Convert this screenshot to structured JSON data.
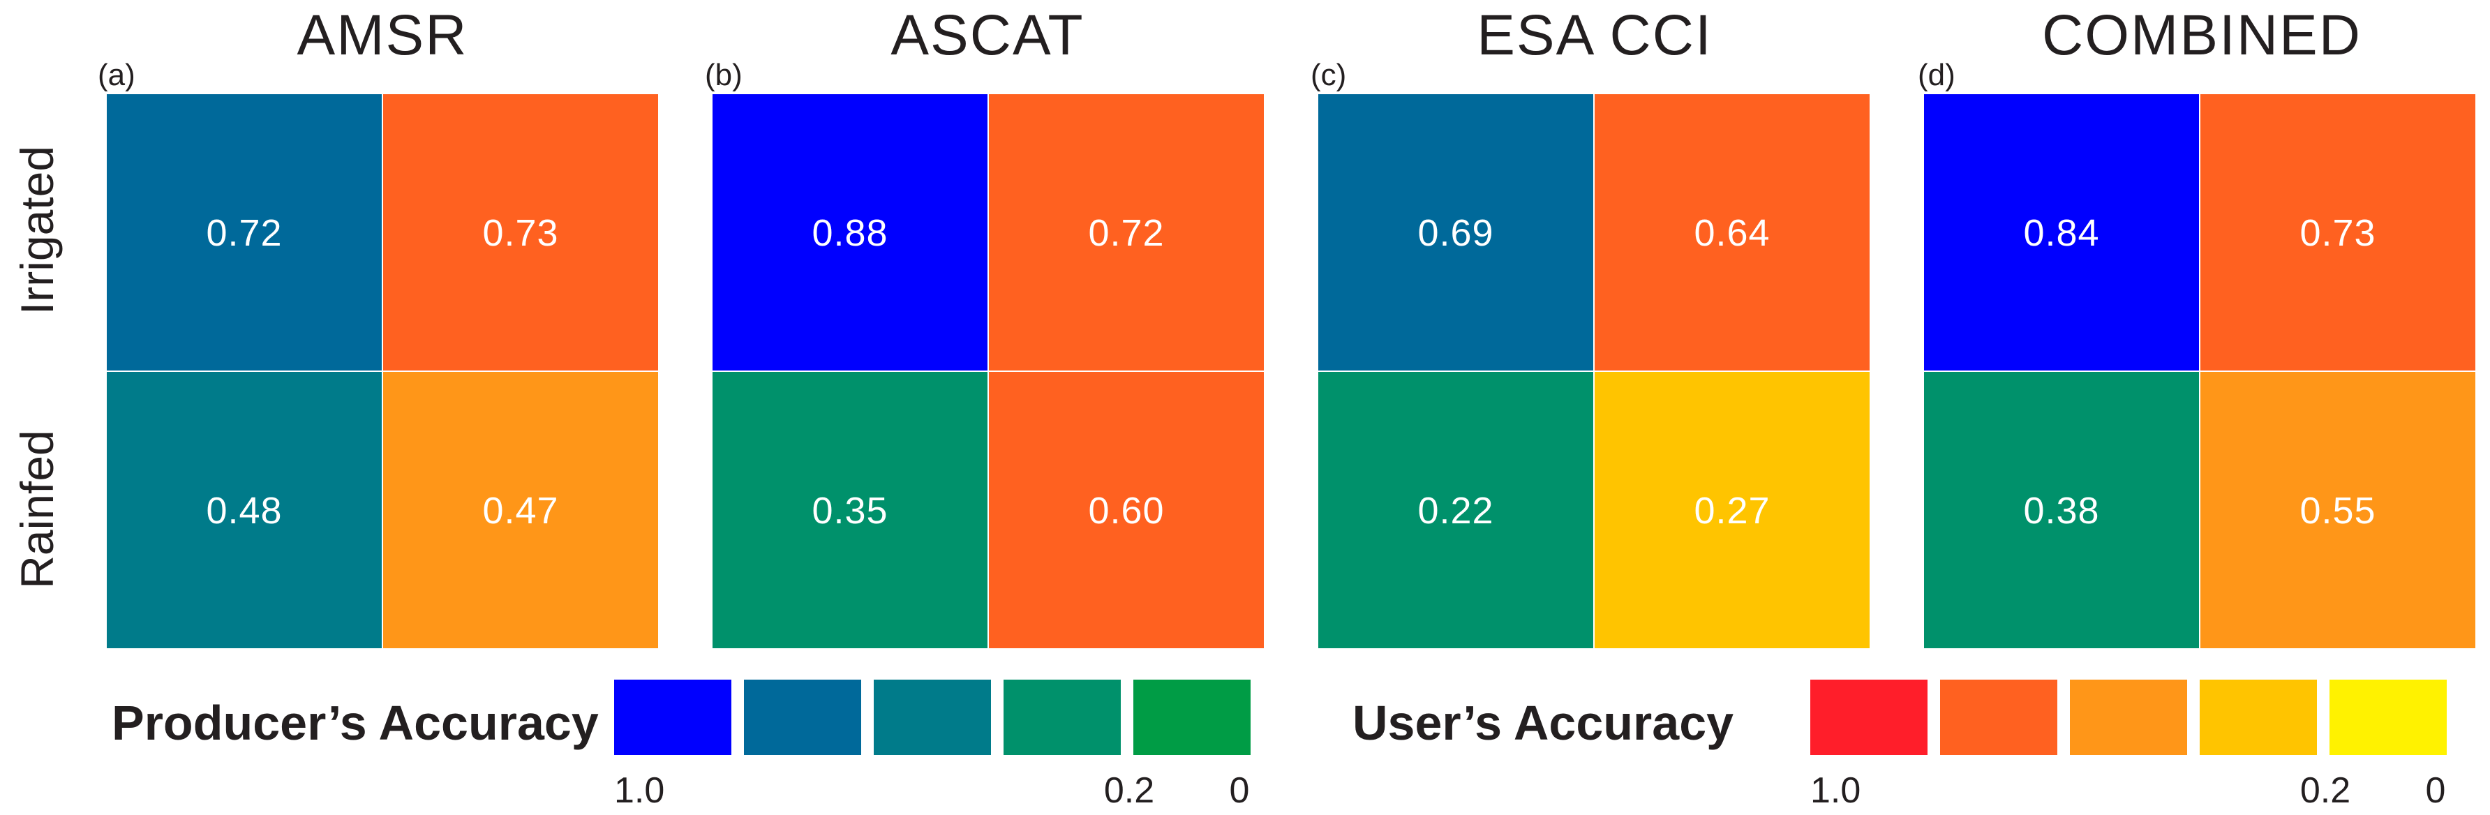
{
  "chart_data": {
    "type": "heatmap",
    "row_labels": [
      "Irrigated",
      "Rainfed"
    ],
    "panels": [
      {
        "label": "(a)",
        "title": "AMSR",
        "producers_accuracy": [
          0.72,
          0.48
        ],
        "users_accuracy": [
          0.73,
          0.47
        ],
        "pa_colors": [
          "#00699a",
          "#007b8a"
        ],
        "ua_colors": [
          "#ff6120",
          "#ff9618"
        ]
      },
      {
        "label": "(b)",
        "title": "ASCAT",
        "producers_accuracy": [
          0.88,
          0.35
        ],
        "users_accuracy": [
          0.72,
          0.6
        ],
        "pa_colors": [
          "#0000ff",
          "#00916b"
        ],
        "ua_colors": [
          "#ff6120",
          "#ff6120"
        ]
      },
      {
        "label": "(c)",
        "title": "ESA CCI",
        "producers_accuracy": [
          0.69,
          0.22
        ],
        "users_accuracy": [
          0.64,
          0.27
        ],
        "pa_colors": [
          "#00699a",
          "#00916b"
        ],
        "ua_colors": [
          "#ff6120",
          "#ffc400"
        ]
      },
      {
        "label": "(d)",
        "title": "COMBINED",
        "producers_accuracy": [
          0.84,
          0.38
        ],
        "users_accuracy": [
          0.73,
          0.55
        ],
        "pa_colors": [
          "#0000ff",
          "#00916b"
        ],
        "ua_colors": [
          "#ff6120",
          "#ff9618"
        ]
      }
    ],
    "legends": [
      {
        "title": "Producer’s  Accuracy",
        "colors": [
          "#0000ff",
          "#00699a",
          "#007b8a",
          "#00916b",
          "#009c45"
        ],
        "ticks": [
          "1.0",
          "0.2",
          "0"
        ]
      },
      {
        "title": "User’s  Accuracy",
        "colors": [
          "#ff1e2a",
          "#ff6120",
          "#ff9618",
          "#ffc400",
          "#fff200"
        ],
        "ticks": [
          "1.0",
          "0.2",
          "0"
        ]
      }
    ]
  }
}
